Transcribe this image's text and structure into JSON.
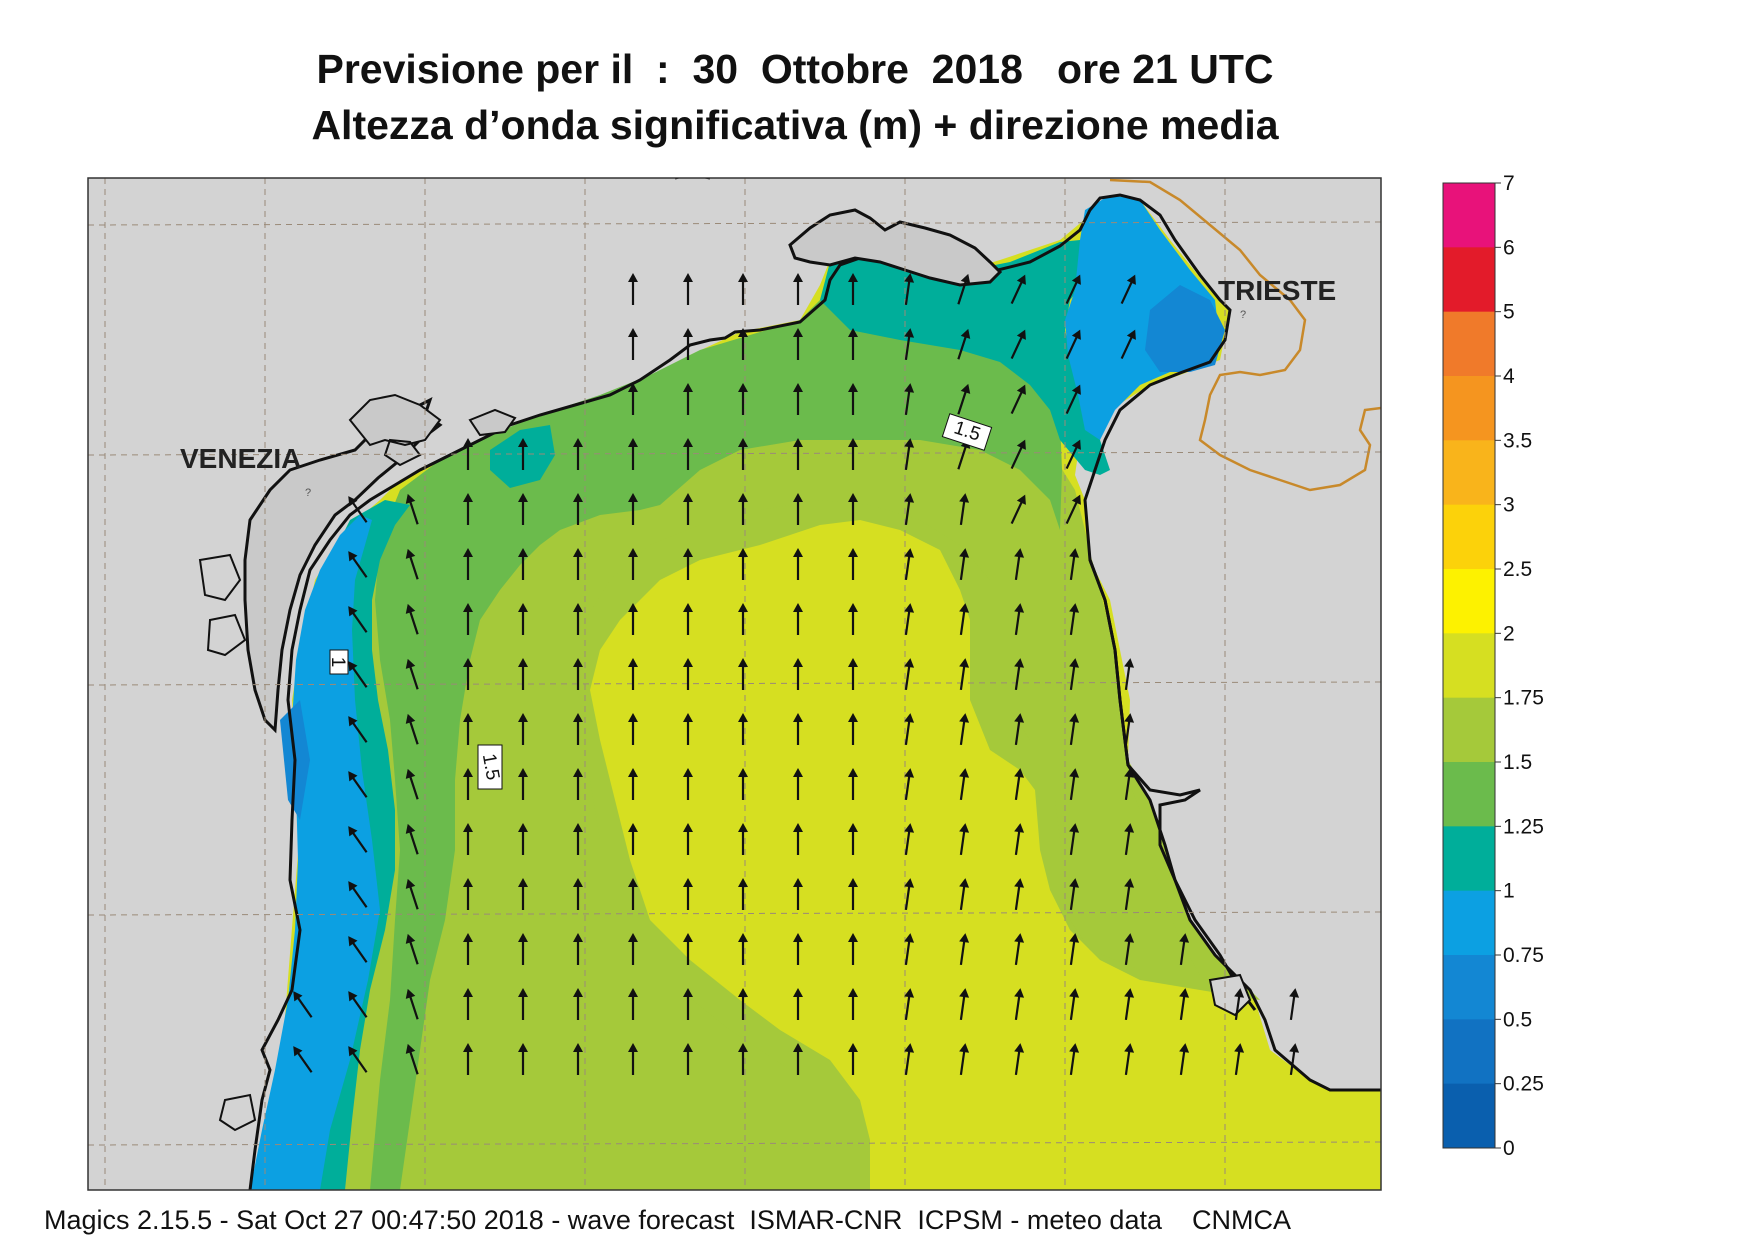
{
  "header": {
    "title_line1": "Previsione per il  :  30  Ottobre  2018   ore 21 UTC",
    "title_line2": "Altezza d’onda significativa (m) + direzione media"
  },
  "map": {
    "cities": {
      "venezia": "VENEZIA",
      "trieste": "TRIESTE"
    },
    "contour_labels": [
      "1",
      "1.5",
      "1.5"
    ],
    "colors": {
      "land": "#d3d3d3",
      "coast": "#111111",
      "border": "#c8892a",
      "grid": "#9a8a78",
      "arrow": "#111111"
    },
    "arrow_direction": "north / north-east (mean wave direction)"
  },
  "colorbar": {
    "labels": [
      "7",
      "6",
      "5",
      "4",
      "3.5",
      "3",
      "2.5",
      "2",
      "1.75",
      "1.5",
      "1.25",
      "1",
      "0.75",
      "0.5",
      "0.25",
      "0"
    ],
    "colors": [
      "#e8127a",
      "#e31b2a",
      "#f07a2a",
      "#f5951f",
      "#f9b41b",
      "#fcd20a",
      "#fdf200",
      "#d6df21",
      "#a5c93a",
      "#6bbb4c",
      "#00ae9a",
      "#0ca0e2",
      "#1387d3",
      "#1172c2",
      "#0a5fae"
    ]
  },
  "footer": {
    "text": "Magics 2.15.5 - Sat Oct 27 00:47:50 2018 - wave forecast  ISMAR-CNR  ICPSM - meteo data    CNMCA"
  }
}
